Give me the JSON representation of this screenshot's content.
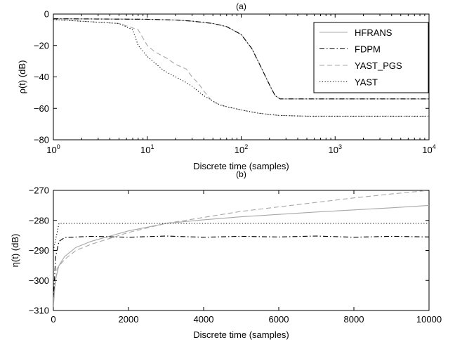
{
  "chart_data": [
    {
      "panel_label": "(a)",
      "type": "line",
      "xlabel": "Discrete time (samples)",
      "ylabel": "ρ(t) (dB)",
      "x_scale": "log",
      "xlim": [
        1,
        10000
      ],
      "ylim": [
        -80,
        0
      ],
      "x_ticks": [
        {
          "value": 1,
          "base": "10",
          "exp": "0"
        },
        {
          "value": 10,
          "base": "10",
          "exp": "1"
        },
        {
          "value": 100,
          "base": "10",
          "exp": "2"
        },
        {
          "value": 1000,
          "base": "10",
          "exp": "3"
        },
        {
          "value": 10000,
          "base": "10",
          "exp": "4"
        }
      ],
      "y_ticks": [
        {
          "value": 0,
          "label": "0"
        },
        {
          "value": -20,
          "label": "−20"
        },
        {
          "value": -40,
          "label": "−40"
        },
        {
          "value": -60,
          "label": "−60"
        },
        {
          "value": -80,
          "label": "−80"
        }
      ],
      "legend": {
        "position": "top-right"
      },
      "series": [
        {
          "name": "HFRANS",
          "color": "#a8a8a8",
          "style": "solid",
          "points": [
            [
              1,
              -3
            ],
            [
              10,
              -3.3
            ],
            [
              20,
              -3.8
            ],
            [
              30,
              -4.5
            ],
            [
              50,
              -6
            ],
            [
              70,
              -8
            ],
            [
              100,
              -13
            ],
            [
              130,
              -22
            ],
            [
              160,
              -33
            ],
            [
              200,
              -45
            ],
            [
              230,
              -52
            ],
            [
              260,
              -54
            ],
            [
              400,
              -54
            ],
            [
              1000,
              -54
            ],
            [
              10000,
              -54
            ]
          ]
        },
        {
          "name": "FDPM",
          "color": "#000000",
          "style": "dashdot",
          "points": [
            [
              1,
              -3
            ],
            [
              10,
              -3.3
            ],
            [
              20,
              -3.8
            ],
            [
              30,
              -4.5
            ],
            [
              50,
              -6
            ],
            [
              70,
              -8
            ],
            [
              100,
              -13
            ],
            [
              130,
              -22
            ],
            [
              160,
              -33
            ],
            [
              200,
              -45
            ],
            [
              230,
              -52
            ],
            [
              260,
              -54
            ],
            [
              400,
              -54
            ],
            [
              1000,
              -54
            ],
            [
              10000,
              -54
            ]
          ]
        },
        {
          "name": "YAST_PGS",
          "color": "#a8a8a8",
          "style": "dashed",
          "points": [
            [
              1,
              -3.5
            ],
            [
              5,
              -6
            ],
            [
              8,
              -10
            ],
            [
              10,
              -20
            ],
            [
              12,
              -24
            ],
            [
              16,
              -28
            ],
            [
              20,
              -32
            ],
            [
              26,
              -35
            ],
            [
              30,
              -40
            ],
            [
              35,
              -44
            ],
            [
              40,
              -49
            ],
            [
              50,
              -56
            ],
            [
              70,
              -59
            ],
            [
              100,
              -61
            ],
            [
              150,
              -63
            ],
            [
              250,
              -64.5
            ],
            [
              500,
              -65
            ],
            [
              10000,
              -65
            ]
          ]
        },
        {
          "name": "YAST",
          "color": "#000000",
          "style": "dotted",
          "points": [
            [
              1,
              -3.5
            ],
            [
              5,
              -6
            ],
            [
              7,
              -10
            ],
            [
              8,
              -20
            ],
            [
              10,
              -27
            ],
            [
              12,
              -31
            ],
            [
              15,
              -36
            ],
            [
              20,
              -40
            ],
            [
              25,
              -43
            ],
            [
              30,
              -46
            ],
            [
              40,
              -52
            ],
            [
              60,
              -58
            ],
            [
              100,
              -61
            ],
            [
              150,
              -63
            ],
            [
              250,
              -64.5
            ],
            [
              500,
              -65
            ],
            [
              10000,
              -65
            ]
          ]
        }
      ]
    },
    {
      "panel_label": "(b)",
      "type": "line",
      "xlabel": "Discrete time (samples)",
      "ylabel": "η(t) (dB)",
      "xlim": [
        0,
        10000
      ],
      "ylim": [
        -310,
        -270
      ],
      "x_ticks": [
        {
          "value": 0,
          "label": "0"
        },
        {
          "value": 2000,
          "label": "2000"
        },
        {
          "value": 4000,
          "label": "4000"
        },
        {
          "value": 6000,
          "label": "6000"
        },
        {
          "value": 8000,
          "label": "8000"
        },
        {
          "value": 10000,
          "label": "10000"
        }
      ],
      "y_ticks": [
        {
          "value": -270,
          "label": "−270"
        },
        {
          "value": -280,
          "label": "−280"
        },
        {
          "value": -290,
          "label": "−290"
        },
        {
          "value": -300,
          "label": "−300"
        },
        {
          "value": -310,
          "label": "−310"
        }
      ],
      "series": [
        {
          "name": "HFRANS",
          "color": "#a8a8a8",
          "style": "solid",
          "points": [
            [
              0,
              -309
            ],
            [
              50,
              -300
            ],
            [
              150,
              -295
            ],
            [
              300,
              -292
            ],
            [
              600,
              -289
            ],
            [
              1000,
              -287
            ],
            [
              2000,
              -283.5
            ],
            [
              3000,
              -281
            ],
            [
              4000,
              -279.8
            ],
            [
              5000,
              -278.8
            ],
            [
              6000,
              -278
            ],
            [
              7000,
              -277.2
            ],
            [
              8000,
              -276.5
            ],
            [
              9000,
              -275.8
            ],
            [
              10000,
              -275
            ]
          ]
        },
        {
          "name": "FDPM",
          "color": "#000000",
          "style": "dashdot",
          "points": [
            [
              0,
              -307
            ],
            [
              60,
              -292
            ],
            [
              150,
              -287
            ],
            [
              300,
              -285.7
            ],
            [
              1000,
              -285.3
            ],
            [
              2000,
              -285.6
            ],
            [
              3000,
              -285.2
            ],
            [
              4000,
              -285.6
            ],
            [
              5000,
              -285.3
            ],
            [
              6000,
              -285.5
            ],
            [
              7000,
              -285.2
            ],
            [
              8000,
              -285.6
            ],
            [
              9000,
              -285.3
            ],
            [
              10000,
              -285.5
            ]
          ]
        },
        {
          "name": "YAST_PGS",
          "color": "#a8a8a8",
          "style": "dashed",
          "points": [
            [
              0,
              -307
            ],
            [
              100,
              -296
            ],
            [
              300,
              -293
            ],
            [
              600,
              -290
            ],
            [
              1000,
              -288
            ],
            [
              2000,
              -284
            ],
            [
              3000,
              -281
            ],
            [
              4000,
              -279
            ],
            [
              5000,
              -277
            ],
            [
              6000,
              -275.5
            ],
            [
              7000,
              -274
            ],
            [
              8000,
              -272.5
            ],
            [
              9000,
              -271.2
            ],
            [
              10000,
              -270
            ]
          ]
        },
        {
          "name": "YAST",
          "color": "#000000",
          "style": "dotted",
          "points": [
            [
              0,
              -290
            ],
            [
              150,
              -281
            ],
            [
              10000,
              -281
            ]
          ]
        }
      ]
    }
  ]
}
